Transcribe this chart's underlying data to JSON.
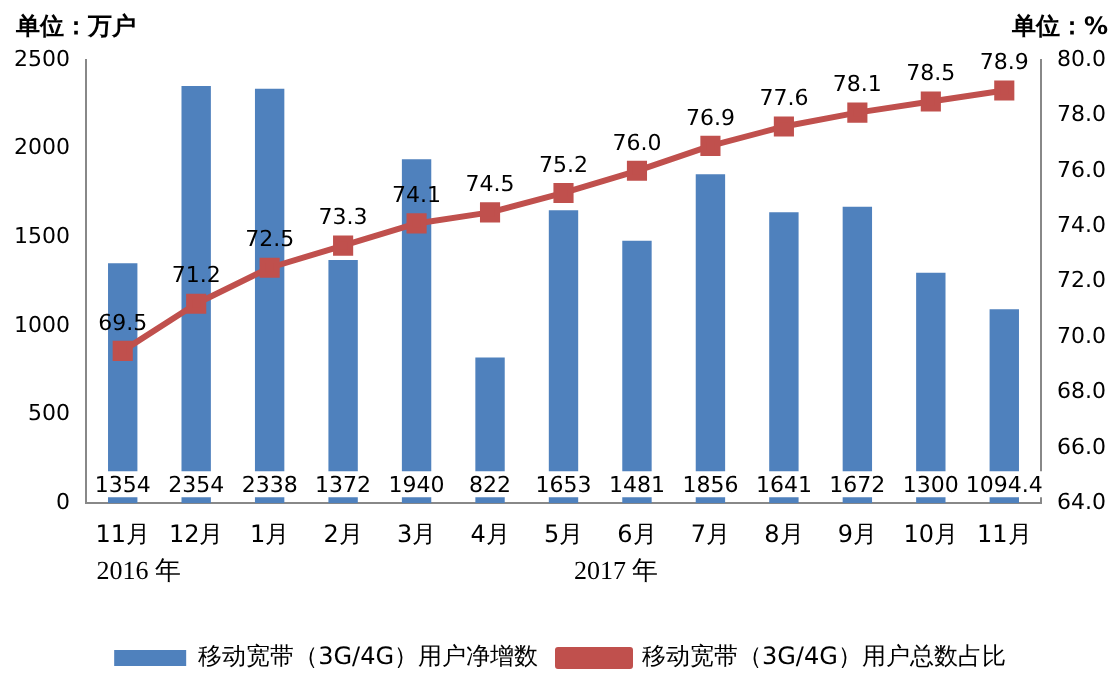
{
  "chart_data": {
    "type": "bar",
    "ylabel": "单位：万户",
    "y2label": "单位：%",
    "categories": [
      "11月",
      "12月",
      "1月",
      "2月",
      "3月",
      "4月",
      "5月",
      "6月",
      "7月",
      "8月",
      "9月",
      "10月",
      "11月"
    ],
    "series": [
      {
        "name": "移动宽带（3G/4G）用户净增数",
        "color": "#4f81bd",
        "values": [
          1354,
          2354,
          2338,
          1372,
          1940,
          822,
          1653,
          1481,
          1856,
          1641,
          1672,
          1300,
          1094.4
        ],
        "value_labels": [
          "1354",
          "2354",
          "2338",
          "1372",
          "1940",
          "822",
          "1653",
          "1481",
          "1856",
          "1641",
          "1672",
          "1300",
          "1094.4"
        ]
      },
      {
        "name": "移动宽带（3G/4G）用户总数占比",
        "type": "line",
        "axis": "y2",
        "color": "#c0504d",
        "marker": "square",
        "values": [
          69.5,
          71.2,
          72.5,
          73.3,
          74.1,
          74.5,
          75.2,
          76.0,
          76.9,
          77.6,
          78.1,
          78.5,
          78.9
        ],
        "value_labels": [
          "69.5",
          "71.2",
          "72.5",
          "73.3",
          "74.1",
          "74.5",
          "75.2",
          "76.0",
          "76.9",
          "77.6",
          "78.1",
          "78.5",
          "78.9"
        ]
      }
    ],
    "ylim": [
      0,
      2500
    ],
    "yticks": [
      0,
      500,
      1000,
      1500,
      2000,
      2500
    ],
    "y2lim": [
      64,
      80
    ],
    "y2ticks": [
      {
        "value": 64,
        "label": "64.0"
      },
      {
        "value": 66,
        "label": "66.0"
      },
      {
        "value": 68,
        "label": "68.0"
      },
      {
        "value": 70,
        "label": "70.0"
      },
      {
        "value": 72,
        "label": "72.0"
      },
      {
        "value": 74,
        "label": "74.0"
      },
      {
        "value": 76,
        "label": "76.0"
      },
      {
        "value": 78,
        "label": "78.0"
      },
      {
        "value": 80,
        "label": "80.0"
      }
    ],
    "annotations": [
      "2016 年",
      "2017 年"
    ],
    "grid": false,
    "legend": "bottom"
  }
}
